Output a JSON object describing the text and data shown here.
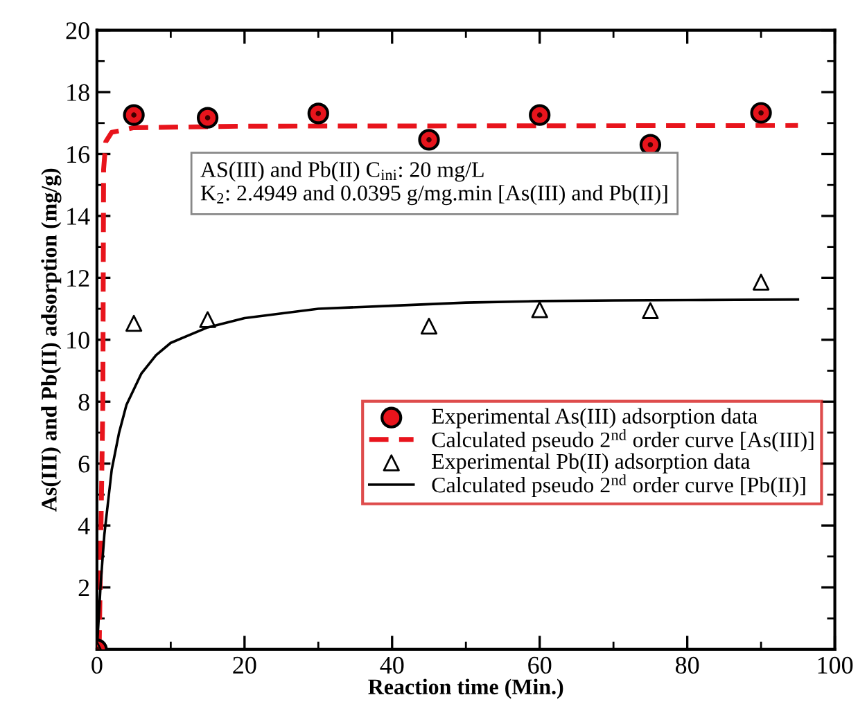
{
  "chart_data": {
    "type": "scatter",
    "xlabel": "Reaction time (Min.)",
    "ylabel": "As(III) and Pb(II) adsorption (mg/g)",
    "xlim": [
      0,
      100
    ],
    "xticks": [
      0,
      20,
      40,
      60,
      80,
      100
    ],
    "ylim": [
      0,
      20
    ],
    "yticks": [
      2,
      4,
      6,
      8,
      10,
      12,
      14,
      16,
      18,
      20
    ],
    "grid": false,
    "legend": "bottom right",
    "annotations": [
      "AS(III) and Pb(II) C$_{ini}$: 20 mg/L\nK$_{2}$: 2.4949 and 0.0395 g/mg.min [As(III) and Pb(II)]"
    ],
    "series": [
      {
        "name": "Experimental As(III) adsorption data",
        "marker": "circle",
        "color": "#e8141c",
        "x": [
          0,
          5,
          15,
          30,
          45,
          60,
          75,
          90
        ],
        "values": [
          0,
          17.26,
          17.17,
          17.31,
          16.46,
          17.26,
          16.3,
          17.33
        ]
      },
      {
        "name": "Calculated pseudo 2$^{nd}$ order curve [As(III)]",
        "type": "line",
        "line_style": "dashed",
        "color": "#e8141c",
        "x": [
          0.3,
          0.8,
          0.9,
          1.2,
          2,
          5,
          20,
          95
        ],
        "values": [
          0,
          8,
          15.5,
          16.4,
          16.7,
          16.85,
          16.9,
          16.92
        ]
      },
      {
        "name": "Experimental Pb(II) adsorption data",
        "marker": "triangle",
        "color": "#000000",
        "x": [
          0,
          5,
          15,
          45,
          60,
          75,
          90
        ],
        "values": [
          0,
          10.53,
          10.65,
          10.44,
          10.97,
          10.94,
          11.86
        ]
      },
      {
        "name": "Calculated pseudo 2$^{nd}$ order curve [Pb(II)]",
        "type": "line",
        "line_style": "solid",
        "color": "#000000",
        "x": [
          0,
          0.5,
          1,
          2,
          3,
          4,
          6,
          8,
          10,
          15,
          20,
          30,
          40,
          50,
          60,
          70,
          80,
          95
        ],
        "values": [
          0,
          2.1,
          3.7,
          5.8,
          7.0,
          7.9,
          8.9,
          9.5,
          9.9,
          10.4,
          10.7,
          11.0,
          11.1,
          11.2,
          11.25,
          11.27,
          11.28,
          11.3
        ]
      }
    ]
  }
}
